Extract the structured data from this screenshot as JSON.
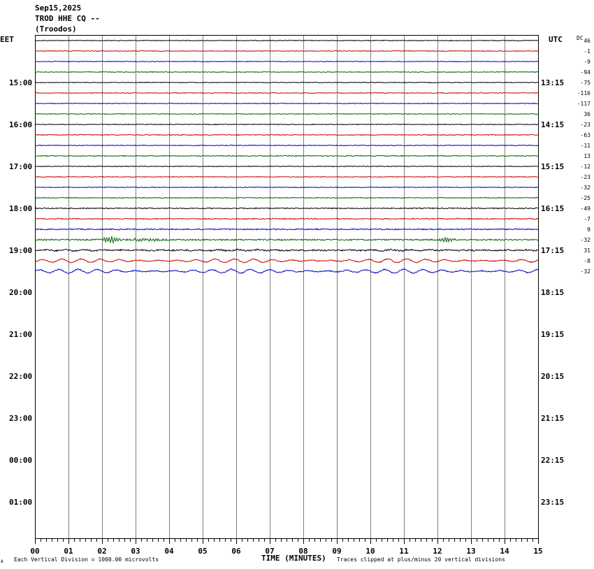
{
  "header": {
    "date": "Sep15,2025",
    "station": "TROD HHE CQ --",
    "location": "(Troodos)"
  },
  "left_axis_label": "EET",
  "right_axis_label": "UTC",
  "dc_label": "DC",
  "footer": {
    "x_axis_title": "TIME (MINUTES)",
    "vertical_division_note": "Each Vertical Division = 1000.00 microvolts",
    "clip_note": "Traces clipped at plus/minus 20 vertical divisions",
    "corner_mark": "A"
  },
  "colors": {
    "trace_cycle": [
      "#000000",
      "#cc0000",
      "#0000cc",
      "#006600"
    ],
    "grid": "#808080"
  },
  "chart_data": {
    "type": "line",
    "title": "",
    "xlabel": "TIME (MINUTES)",
    "x_ticks": [
      "00",
      "01",
      "02",
      "03",
      "04",
      "05",
      "06",
      "07",
      "08",
      "09",
      "10",
      "11",
      "12",
      "13",
      "14",
      "15"
    ],
    "xlim": [
      0,
      15
    ],
    "row_minutes": 15,
    "total_rows": 44,
    "left_hour_labels": [
      "15:00",
      "16:00",
      "17:00",
      "18:00",
      "19:00",
      "20:00",
      "21:00",
      "22:00",
      "23:00",
      "00:00",
      "01:00"
    ],
    "right_hour_labels": [
      "13:15",
      "14:15",
      "15:15",
      "16:15",
      "17:15",
      "18:15",
      "19:15",
      "20:15",
      "21:15",
      "22:15",
      "23:15"
    ],
    "traces": [
      {
        "dc": "46",
        "color": "#000000",
        "noise": 0.5,
        "events": []
      },
      {
        "dc": "-1",
        "color": "#cc0000",
        "noise": 0.5,
        "events": []
      },
      {
        "dc": "-9",
        "color": "#0000cc",
        "noise": 0.5,
        "events": []
      },
      {
        "dc": "-94",
        "color": "#006600",
        "noise": 0.5,
        "events": []
      },
      {
        "dc": "-75",
        "color": "#000000",
        "noise": 0.5,
        "events": []
      },
      {
        "dc": "-116",
        "color": "#cc0000",
        "noise": 0.5,
        "events": []
      },
      {
        "dc": "-117",
        "color": "#0000cc",
        "noise": 0.5,
        "events": []
      },
      {
        "dc": "36",
        "color": "#006600",
        "noise": 0.5,
        "events": []
      },
      {
        "dc": "-23",
        "color": "#000000",
        "noise": 0.5,
        "events": []
      },
      {
        "dc": "-63",
        "color": "#cc0000",
        "noise": 0.6,
        "events": []
      },
      {
        "dc": "-11",
        "color": "#0000cc",
        "noise": 0.5,
        "events": []
      },
      {
        "dc": "13",
        "color": "#006600",
        "noise": 0.6,
        "events": []
      },
      {
        "dc": "-12",
        "color": "#000000",
        "noise": 0.5,
        "events": []
      },
      {
        "dc": "-23",
        "color": "#cc0000",
        "noise": 0.5,
        "events": []
      },
      {
        "dc": "-32",
        "color": "#0000cc",
        "noise": 0.5,
        "events": []
      },
      {
        "dc": "-25",
        "color": "#006600",
        "noise": 0.6,
        "events": []
      },
      {
        "dc": "-49",
        "color": "#000000",
        "noise": 0.7,
        "events": []
      },
      {
        "dc": "-7",
        "color": "#cc0000",
        "noise": 0.7,
        "events": []
      },
      {
        "dc": "9",
        "color": "#0000cc",
        "noise": 0.8,
        "events": []
      },
      {
        "dc": "-32",
        "color": "#006600",
        "noise": 1.0,
        "events": [
          {
            "start": 1.9,
            "end": 2.6,
            "amp": 5
          },
          {
            "start": 2.6,
            "end": 4.0,
            "amp": 2
          },
          {
            "start": 12.0,
            "end": 12.6,
            "amp": 3.5
          }
        ]
      },
      {
        "dc": "31",
        "color": "#000000",
        "noise": 1.1,
        "events": [],
        "swell": 0.8
      },
      {
        "dc": "-8",
        "color": "#cc0000",
        "noise": 0.7,
        "events": [],
        "swell": 2.6
      },
      {
        "dc": "-32",
        "color": "#0000cc",
        "noise": 0.7,
        "events": [],
        "swell": 2.8
      }
    ]
  }
}
